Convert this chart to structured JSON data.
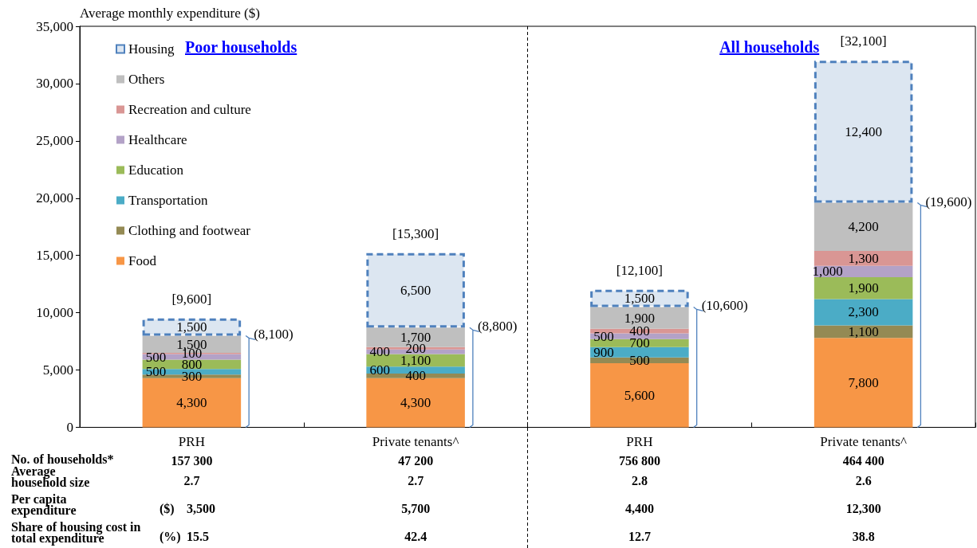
{
  "chart_data": {
    "type": "bar",
    "stacked": true,
    "ylabel": "Average monthly expenditure ($)",
    "categories": [
      "PRH",
      "Private tenants^",
      "PRH",
      "Private tenants^"
    ],
    "series": [
      {
        "name": "Food",
        "color": "#f79646",
        "values": [
          4300,
          4300,
          5600,
          7800
        ],
        "value_labels": [
          "4,300",
          "4,300",
          "5,600",
          "7,800"
        ]
      },
      {
        "name": "Clothing and footwear",
        "color": "#948a54",
        "values": [
          300,
          400,
          500,
          1100
        ],
        "value_labels": [
          "300",
          "400",
          "500",
          "1,100"
        ]
      },
      {
        "name": "Transportation",
        "color": "#4bacc6",
        "values": [
          500,
          600,
          900,
          2300
        ],
        "value_labels": [
          "500",
          "600",
          "900",
          "2,300"
        ]
      },
      {
        "name": "Education",
        "color": "#9bbb59",
        "values": [
          800,
          1100,
          700,
          1900
        ],
        "value_labels": [
          "800",
          "1,100",
          "700",
          "1,900"
        ]
      },
      {
        "name": "Healthcare",
        "color": "#b3a2c7",
        "values": [
          500,
          400,
          500,
          1000
        ],
        "value_labels": [
          "500",
          "400",
          "500",
          "1,000"
        ]
      },
      {
        "name": "Recreation and culture",
        "color": "#d99694",
        "values": [
          100,
          200,
          400,
          1300
        ],
        "value_labels": [
          "100",
          "200",
          "400",
          "1,300"
        ]
      },
      {
        "name": "Others",
        "color": "#bfbfbf",
        "values": [
          1500,
          1700,
          1900,
          4200
        ],
        "value_labels": [
          "1,500",
          "1,700",
          "1,900",
          "4,200"
        ]
      },
      {
        "name": "Housing",
        "color": "#dce6f1",
        "line_style": "dashed",
        "values": [
          1500,
          6500,
          1500,
          12400
        ],
        "value_labels": [
          "1,500",
          "6,500",
          "1,500",
          "12,400"
        ]
      }
    ],
    "ylim": [
      0,
      35000
    ],
    "yticks": [
      {
        "value": 0,
        "label": "0"
      },
      {
        "value": 5000,
        "label": "5,000"
      },
      {
        "value": 10000,
        "label": "10,000"
      },
      {
        "value": 15000,
        "label": "15,000"
      },
      {
        "value": 20000,
        "label": "20,000"
      },
      {
        "value": 25000,
        "label": "25,000"
      },
      {
        "value": 30000,
        "label": "30,000"
      },
      {
        "value": 35000,
        "label": "35,000"
      }
    ],
    "legend": "top left",
    "grid": false,
    "annotations": [
      "Poor households",
      "All households",
      "[9,600]",
      "[15,300]",
      "[12,100]",
      "[32,100]",
      "(8,100)",
      "(8,800)",
      "(10,600)",
      "(19,600)",
      "No. of households*",
      "157 300",
      "47 200",
      "756 800",
      "464 400",
      "Average household size",
      "2.7",
      "2.7",
      "2.8",
      "2.6",
      "Per capita expenditure",
      "($)",
      "3,500",
      "5,700",
      "4,400",
      "12,300",
      "Share of housing cost in total expenditure",
      "(%)",
      "15.5",
      "42.4",
      "12.7",
      "38.8"
    ]
  }
}
